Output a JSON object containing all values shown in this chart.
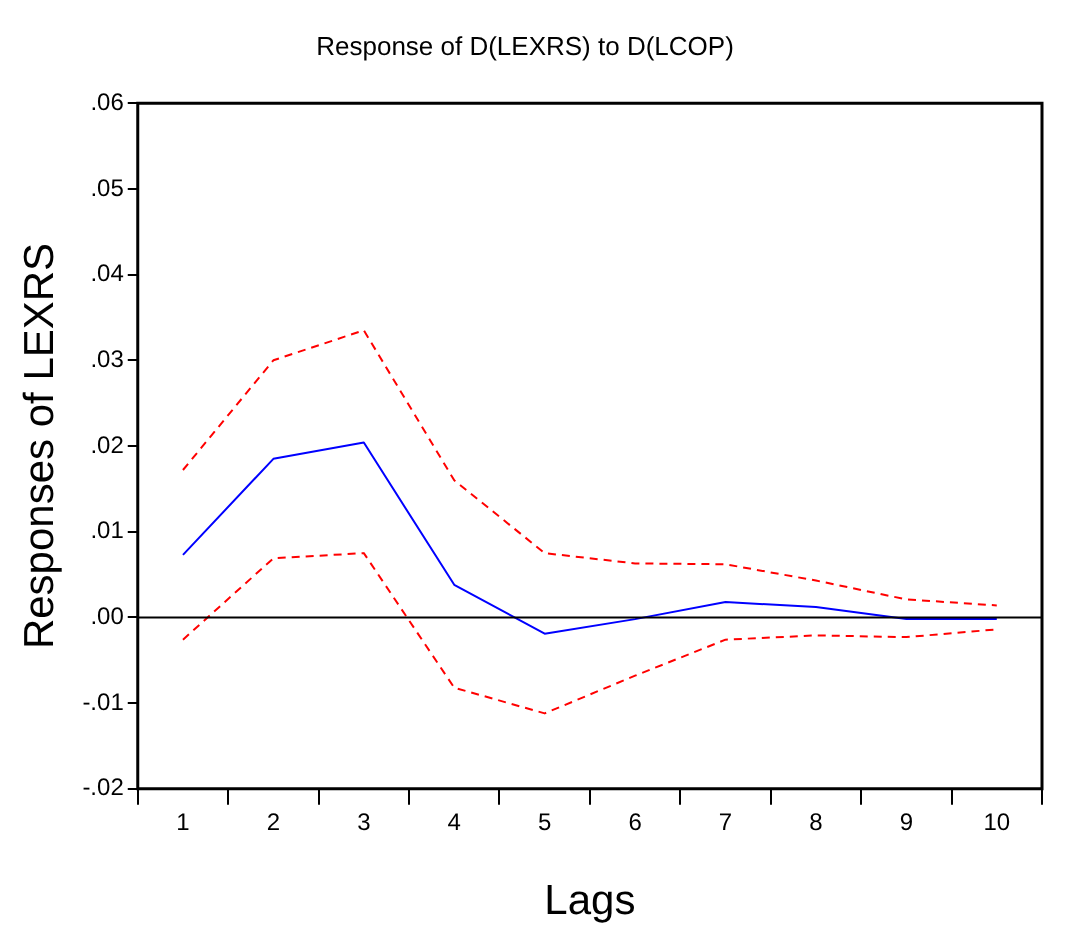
{
  "chart_data": {
    "type": "line",
    "title": "Response of D(LEXRS) to D(LCOP)",
    "xlabel": "Lags",
    "ylabel": "Responses of LEXRS",
    "categories": [
      "1",
      "2",
      "3",
      "4",
      "5",
      "6",
      "7",
      "8",
      "9",
      "10"
    ],
    "series": [
      {
        "color": "#0000ff",
        "line_style": "solid",
        "values": [
          0.0073,
          0.0185,
          0.0204,
          0.0038,
          -0.0019,
          -0.0002,
          0.0018,
          0.0012,
          -0.0002,
          -0.0002
        ]
      },
      {
        "color": "#ff0000",
        "line_style": "dashed",
        "values": [
          0.0172,
          0.03,
          0.0335,
          0.016,
          0.0075,
          0.0063,
          0.0062,
          0.0043,
          0.0021,
          0.0014
        ]
      },
      {
        "color": "#ff0000",
        "line_style": "dashed",
        "values": [
          -0.0026,
          0.0069,
          0.0075,
          -0.0082,
          -0.0112,
          -0.0068,
          -0.0026,
          -0.0021,
          -0.0023,
          -0.0014
        ]
      }
    ],
    "ylim": [
      -0.02,
      0.06
    ],
    "yticks": [
      {
        "value": -0.02,
        "label": "-.02"
      },
      {
        "value": -0.01,
        "label": "-.01"
      },
      {
        "value": 0,
        "label": ".00"
      },
      {
        "value": 0.01,
        "label": ".01"
      },
      {
        "value": 0.02,
        "label": ".02"
      },
      {
        "value": 0.03,
        "label": ".03"
      },
      {
        "value": 0.04,
        "label": ".04"
      },
      {
        "value": 0.05,
        "label": ".05"
      },
      {
        "value": 0.06,
        "label": ".06"
      }
    ],
    "ref_lines": [
      {
        "axis": "y",
        "value": 0,
        "color": "#000000"
      }
    ],
    "grid": false,
    "legend": false,
    "marker": "none"
  }
}
